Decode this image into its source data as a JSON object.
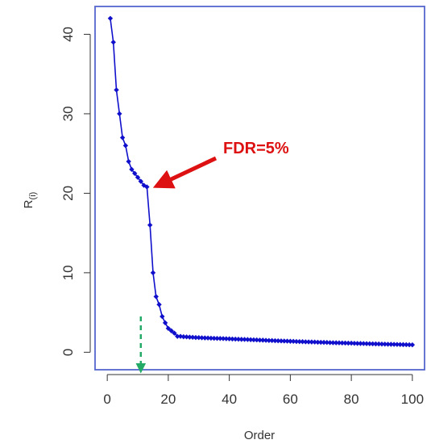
{
  "chart_data": {
    "type": "line",
    "title": "",
    "xlabel": "Order",
    "ylabel": "R",
    "ylabel_subscript": "(i)",
    "xlim": [
      -4,
      104
    ],
    "ylim": [
      -2.2,
      43.5
    ],
    "xticks": [
      0,
      20,
      40,
      60,
      80,
      100
    ],
    "yticks": [
      0,
      10,
      20,
      30,
      40
    ],
    "grid": false,
    "legend": "none",
    "series": [
      {
        "color": "#1010cc",
        "marker": "diamond",
        "x": [
          1,
          2,
          3,
          4,
          5,
          6,
          7,
          8,
          9,
          10,
          11,
          12,
          13,
          14,
          15,
          16,
          17,
          18,
          19,
          20,
          21,
          22,
          23,
          24,
          25,
          26,
          27,
          28,
          29,
          30,
          31,
          32,
          33,
          34,
          35,
          36,
          37,
          38,
          39,
          40,
          41,
          42,
          43,
          44,
          45,
          46,
          47,
          48,
          49,
          50,
          51,
          52,
          53,
          54,
          55,
          56,
          57,
          58,
          59,
          60,
          61,
          62,
          63,
          64,
          65,
          66,
          67,
          68,
          69,
          70,
          71,
          72,
          73,
          74,
          75,
          76,
          77,
          78,
          79,
          80,
          81,
          82,
          83,
          84,
          85,
          86,
          87,
          88,
          89,
          90,
          91,
          92,
          93,
          94,
          95,
          96,
          97,
          98,
          99,
          100
        ],
        "y": [
          42,
          39,
          33,
          30,
          27,
          26,
          24,
          23,
          22.5,
          22,
          21.5,
          21,
          20.8,
          16,
          10,
          7,
          6,
          4.5,
          3.7,
          3,
          2.7,
          2.4,
          2.0,
          2.0,
          1.95,
          1.93,
          1.9,
          1.88,
          1.85,
          1.84,
          1.82,
          1.8,
          1.79,
          1.77,
          1.75,
          1.74,
          1.73,
          1.72,
          1.7,
          1.69,
          1.67,
          1.65,
          1.64,
          1.62,
          1.61,
          1.6,
          1.58,
          1.56,
          1.55,
          1.53,
          1.52,
          1.5,
          1.48,
          1.47,
          1.45,
          1.44,
          1.42,
          1.41,
          1.4,
          1.38,
          1.37,
          1.35,
          1.34,
          1.33,
          1.31,
          1.3,
          1.29,
          1.28,
          1.26,
          1.25,
          1.24,
          1.23,
          1.21,
          1.2,
          1.19,
          1.18,
          1.17,
          1.16,
          1.15,
          1.14,
          1.12,
          1.11,
          1.1,
          1.09,
          1.08,
          1.07,
          1.06,
          1.05,
          1.04,
          1.03,
          1.02,
          1.01,
          1.0,
          0.99,
          0.98,
          0.97,
          0.96,
          0.95,
          0.94,
          0.93
        ]
      }
    ],
    "annotations": [
      {
        "text": "FDR=5%",
        "color": "#dd1111",
        "target_x": 13,
        "target_y": 20.8
      },
      {
        "text": "",
        "color": "#22aa66",
        "style": "dashed-arrow",
        "target_x": 11,
        "from_y": 4.5,
        "to_y": -2
      }
    ],
    "colors": {
      "frame": "#5566cc",
      "line": "#1010cc",
      "fdr_arrow": "#dd1111",
      "cutoff_arrow": "#22aa66"
    }
  }
}
